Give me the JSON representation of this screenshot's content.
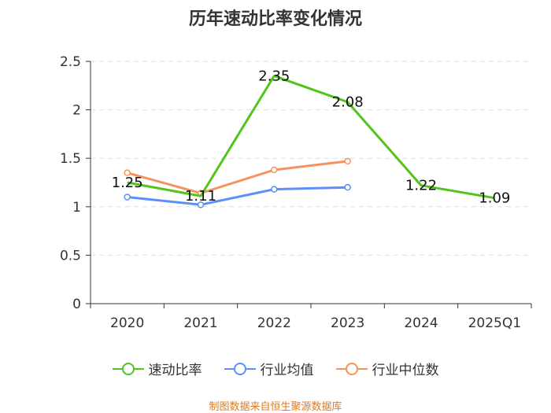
{
  "chart_data": {
    "type": "line",
    "title": "历年速动比率变化情况",
    "categories": [
      "2020",
      "2021",
      "2022",
      "2023",
      "2024",
      "2025Q1"
    ],
    "ylim": [
      0,
      2.5
    ],
    "yticks": [
      "0",
      "0.5",
      "1",
      "1.5",
      "2",
      "2.5"
    ],
    "grid": true,
    "legend_position": "bottom",
    "series": [
      {
        "name": "速动比率",
        "color": "#52c41a",
        "values": [
          1.25,
          1.11,
          2.35,
          2.08,
          1.22,
          1.09
        ],
        "labels": [
          "1.25",
          "1.11",
          "2.35",
          "2.08",
          "1.22",
          "1.09"
        ],
        "show_labels": true,
        "markers": false
      },
      {
        "name": "行业均值",
        "color": "#5b8ff9",
        "values": [
          1.1,
          1.02,
          1.18,
          1.2,
          null,
          null
        ],
        "show_labels": false,
        "markers": true
      },
      {
        "name": "行业中位数",
        "color": "#f6925e",
        "values": [
          1.35,
          1.14,
          1.38,
          1.47,
          null,
          null
        ],
        "show_labels": false,
        "markers": true
      }
    ]
  },
  "source_note": "制图数据来自恒生聚源数据库"
}
